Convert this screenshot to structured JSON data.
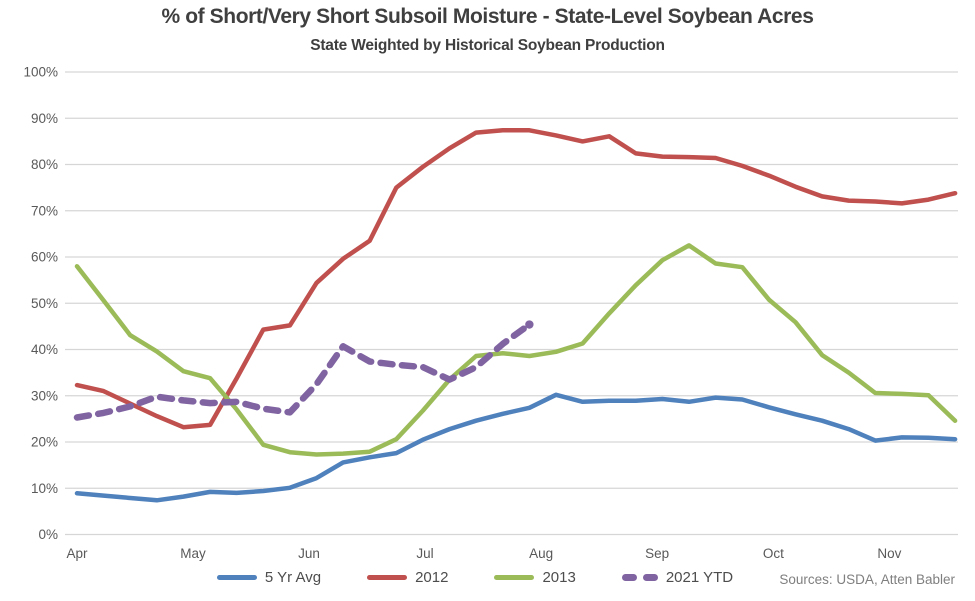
{
  "header": {
    "title": "% of Short/Very Short Subsoil Moisture - State-Level Soybean Acres",
    "subtitle": "State Weighted by Historical Soybean Production"
  },
  "footer": {
    "sources": "Sources: USDA, Atten Babler"
  },
  "legend": {
    "items": [
      {
        "label": "5 Yr Avg",
        "color": "#4F81BD",
        "dashed": false
      },
      {
        "label": "2012",
        "color": "#C0504D",
        "dashed": false
      },
      {
        "label": "2013",
        "color": "#9BBB59",
        "dashed": false
      },
      {
        "label": "2021 YTD",
        "color": "#8064A2",
        "dashed": true
      }
    ]
  },
  "chart_data": {
    "type": "line",
    "title": "% of Short/Very Short Subsoil Moisture - State-Level Soybean Acres",
    "subtitle": "State Weighted by Historical Soybean Production",
    "x_unit": "weeks from early April (weekly USDA observations)",
    "ylim": [
      0,
      100
    ],
    "grid": true,
    "legend_position": "bottom",
    "style": {
      "grid_color": "#d6d6d6",
      "background": "#ffffff"
    },
    "y_ticks": [
      {
        "label": "100%",
        "value": 100
      },
      {
        "label": "90%",
        "value": 90
      },
      {
        "label": "80%",
        "value": 80
      },
      {
        "label": "70%",
        "value": 70
      },
      {
        "label": "60%",
        "value": 60
      },
      {
        "label": "50%",
        "value": 50
      },
      {
        "label": "40%",
        "value": 40
      },
      {
        "label": "30%",
        "value": 30
      },
      {
        "label": "20%",
        "value": 20
      },
      {
        "label": "10%",
        "value": 10
      },
      {
        "label": "0%",
        "value": 0
      }
    ],
    "x_ticks": [
      {
        "label": "Apr",
        "week": 0
      },
      {
        "label": "May",
        "week": 4.36
      },
      {
        "label": "Jun",
        "week": 8.72
      },
      {
        "label": "Jul",
        "week": 13.08
      },
      {
        "label": "Aug",
        "week": 17.44
      },
      {
        "label": "Sep",
        "week": 21.8
      },
      {
        "label": "Oct",
        "week": 26.17
      },
      {
        "label": "Nov",
        "week": 30.53
      }
    ],
    "series": [
      {
        "name": "5 Yr Avg",
        "color": "#4F81BD",
        "dashed": false,
        "width": 4.5,
        "values": [
          8.9,
          8.4,
          7.9,
          7.4,
          8.2,
          9.2,
          9.0,
          9.4,
          10.1,
          12.2,
          15.6,
          16.7,
          17.6,
          20.5,
          22.8,
          24.6,
          26.1,
          27.4,
          30.2,
          28.7,
          28.9,
          28.9,
          29.3,
          28.7,
          29.6,
          29.2,
          27.5,
          26.0,
          24.6,
          22.8,
          20.3,
          21.0,
          20.9,
          20.6
        ]
      },
      {
        "name": "2012",
        "color": "#C0504D",
        "dashed": false,
        "width": 4.5,
        "values": [
          32.3,
          31.0,
          28.3,
          25.6,
          23.2,
          23.7,
          33.8,
          44.3,
          45.2,
          54.4,
          59.6,
          63.5,
          75.0,
          79.5,
          83.5,
          86.9,
          87.4,
          87.4,
          86.3,
          85.0,
          86.1,
          82.4,
          81.7,
          81.6,
          81.4,
          79.7,
          77.6,
          75.2,
          73.1,
          72.2,
          72.0,
          71.6,
          72.4,
          73.8
        ]
      },
      {
        "name": "2013",
        "color": "#9BBB59",
        "dashed": false,
        "width": 4.5,
        "values": [
          58.0,
          50.6,
          43.1,
          39.6,
          35.3,
          33.8,
          27.0,
          19.4,
          17.8,
          17.3,
          17.5,
          17.9,
          20.6,
          26.8,
          33.5,
          38.6,
          39.2,
          38.6,
          39.5,
          41.3,
          47.8,
          53.9,
          59.3,
          62.5,
          58.6,
          57.8,
          50.8,
          45.9,
          38.8,
          35.0,
          30.6,
          30.4,
          30.1,
          24.6
        ]
      },
      {
        "name": "2021 YTD",
        "color": "#8064A2",
        "dashed": true,
        "width": 6.5,
        "end_dot": true,
        "values": [
          25.3,
          26.3,
          27.7,
          29.8,
          29.0,
          28.4,
          28.7,
          27.2,
          26.4,
          32.5,
          40.7,
          37.4,
          36.7,
          36.2,
          33.5,
          36.2,
          41.2,
          45.4
        ]
      }
    ]
  }
}
